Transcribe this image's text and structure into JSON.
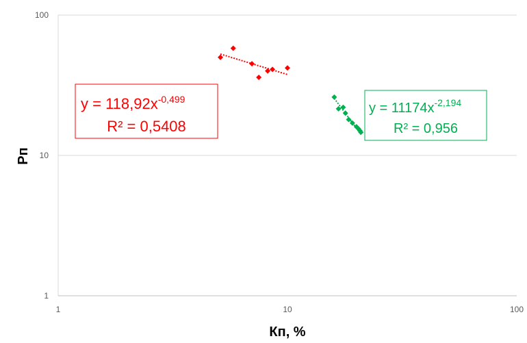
{
  "chart_data": {
    "type": "scatter",
    "xscale": "log",
    "yscale": "log",
    "xlim": [
      1,
      100
    ],
    "ylim": [
      1,
      100
    ],
    "xticks": [
      "1",
      "10",
      "100"
    ],
    "yticks": [
      "1",
      "10",
      "100"
    ],
    "xlabel": "Кп, %",
    "ylabel": "Рп",
    "grid": {
      "horizontal": true,
      "vertical": false
    },
    "series": [
      {
        "color": "#ff0000",
        "points": [
          {
            "x": 5.1,
            "y": 50
          },
          {
            "x": 5.8,
            "y": 58
          },
          {
            "x": 7.0,
            "y": 45
          },
          {
            "x": 7.5,
            "y": 36
          },
          {
            "x": 8.2,
            "y": 40
          },
          {
            "x": 8.6,
            "y": 41
          },
          {
            "x": 10.0,
            "y": 42
          }
        ],
        "trendline": {
          "type": "power",
          "a": 118.92,
          "b": -0.499,
          "x_range": [
            5.1,
            10.0
          ],
          "equation_base": "y = 118,92x",
          "equation_exp": "-0,499",
          "r2_label": "R² = 0,5408"
        }
      },
      {
        "color": "#00b050",
        "points": [
          {
            "x": 16.0,
            "y": 26
          },
          {
            "x": 16.7,
            "y": 21.5
          },
          {
            "x": 17.5,
            "y": 22
          },
          {
            "x": 17.9,
            "y": 20
          },
          {
            "x": 18.5,
            "y": 18
          },
          {
            "x": 19.2,
            "y": 17
          },
          {
            "x": 20.0,
            "y": 16
          },
          {
            "x": 20.4,
            "y": 15.5
          },
          {
            "x": 20.7,
            "y": 15
          },
          {
            "x": 20.9,
            "y": 14.6
          }
        ],
        "trendline": {
          "type": "power",
          "a": 11174,
          "b": -2.194,
          "x_range": [
            16.0,
            20.9
          ],
          "equation_base": "y = 11174x",
          "equation_exp": "-2,194",
          "r2_label": "R² = 0,956"
        }
      }
    ]
  }
}
